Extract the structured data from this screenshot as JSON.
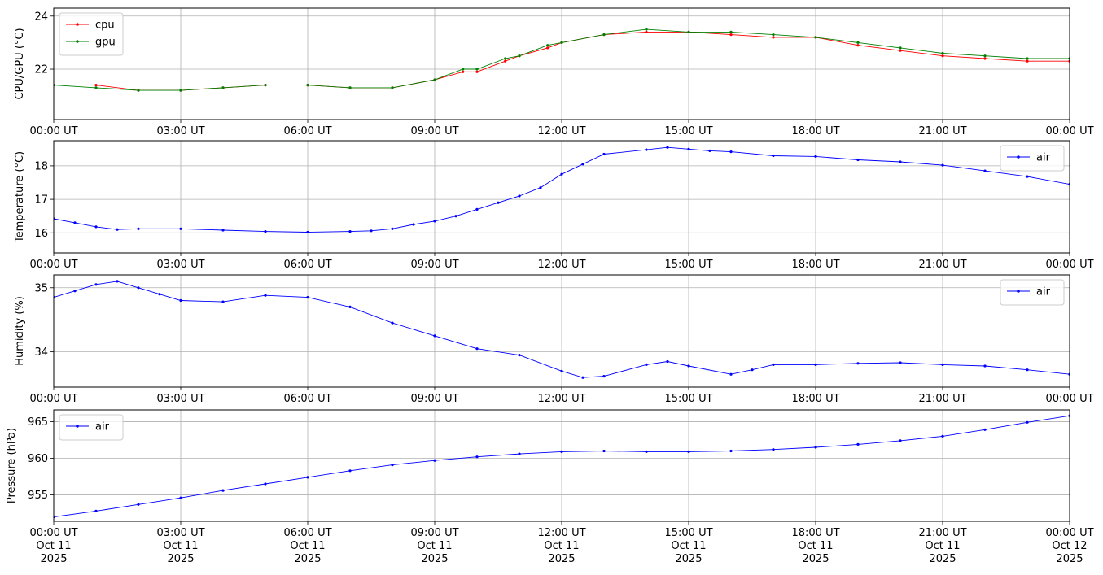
{
  "chart_data": [
    {
      "type": "line",
      "ylabel": "CPU/GPU (°C)",
      "xlim": [
        "2025-10-11T00:00",
        "2025-10-12T00:00"
      ],
      "ylim": [
        20.1,
        24.3
      ],
      "yticks": [
        22,
        24
      ],
      "x_tick_labels": [
        "00:00 UT",
        "03:00 UT",
        "06:00 UT",
        "09:00 UT",
        "12:00 UT",
        "15:00 UT",
        "18:00 UT",
        "21:00 UT",
        "00:00 UT"
      ],
      "grid": true,
      "legend": "top-left",
      "series": [
        {
          "name": "cpu",
          "color": "#ff0000",
          "points": [
            [
              "2025-10-11T00:00",
              21.4
            ],
            [
              "2025-10-11T01:00",
              21.4
            ],
            [
              "2025-10-11T02:00",
              21.2
            ],
            [
              "2025-10-11T03:00",
              21.2
            ],
            [
              "2025-10-11T04:00",
              21.3
            ],
            [
              "2025-10-11T05:00",
              21.4
            ],
            [
              "2025-10-11T06:00",
              21.4
            ],
            [
              "2025-10-11T07:00",
              21.3
            ],
            [
              "2025-10-11T08:00",
              21.3
            ],
            [
              "2025-10-11T09:00",
              21.6
            ],
            [
              "2025-10-11T09:40",
              21.9
            ],
            [
              "2025-10-11T10:00",
              21.9
            ],
            [
              "2025-10-11T10:40",
              22.3
            ],
            [
              "2025-10-11T11:00",
              22.5
            ],
            [
              "2025-10-11T11:40",
              22.8
            ],
            [
              "2025-10-11T12:00",
              23.0
            ],
            [
              "2025-10-11T13:00",
              23.3
            ],
            [
              "2025-10-11T14:00",
              23.4
            ],
            [
              "2025-10-11T15:00",
              23.4
            ],
            [
              "2025-10-11T16:00",
              23.3
            ],
            [
              "2025-10-11T17:00",
              23.2
            ],
            [
              "2025-10-11T18:00",
              23.2
            ],
            [
              "2025-10-11T19:00",
              22.9
            ],
            [
              "2025-10-11T20:00",
              22.7
            ],
            [
              "2025-10-11T21:00",
              22.5
            ],
            [
              "2025-10-11T22:00",
              22.4
            ],
            [
              "2025-10-11T23:00",
              22.3
            ],
            [
              "2025-10-12T00:00",
              22.3
            ]
          ]
        },
        {
          "name": "gpu",
          "color": "#008000",
          "points": [
            [
              "2025-10-11T00:00",
              21.4
            ],
            [
              "2025-10-11T01:00",
              21.3
            ],
            [
              "2025-10-11T02:00",
              21.2
            ],
            [
              "2025-10-11T03:00",
              21.2
            ],
            [
              "2025-10-11T04:00",
              21.3
            ],
            [
              "2025-10-11T05:00",
              21.4
            ],
            [
              "2025-10-11T06:00",
              21.4
            ],
            [
              "2025-10-11T07:00",
              21.3
            ],
            [
              "2025-10-11T08:00",
              21.3
            ],
            [
              "2025-10-11T09:00",
              21.6
            ],
            [
              "2025-10-11T09:40",
              22.0
            ],
            [
              "2025-10-11T10:00",
              22.0
            ],
            [
              "2025-10-11T10:40",
              22.4
            ],
            [
              "2025-10-11T11:00",
              22.5
            ],
            [
              "2025-10-11T11:40",
              22.9
            ],
            [
              "2025-10-11T12:00",
              23.0
            ],
            [
              "2025-10-11T13:00",
              23.3
            ],
            [
              "2025-10-11T14:00",
              23.5
            ],
            [
              "2025-10-11T15:00",
              23.4
            ],
            [
              "2025-10-11T16:00",
              23.4
            ],
            [
              "2025-10-11T17:00",
              23.3
            ],
            [
              "2025-10-11T18:00",
              23.2
            ],
            [
              "2025-10-11T19:00",
              23.0
            ],
            [
              "2025-10-11T20:00",
              22.8
            ],
            [
              "2025-10-11T21:00",
              22.6
            ],
            [
              "2025-10-11T22:00",
              22.5
            ],
            [
              "2025-10-11T23:00",
              22.4
            ],
            [
              "2025-10-12T00:00",
              22.4
            ]
          ]
        }
      ]
    },
    {
      "type": "line",
      "ylabel": "Temperature (°C)",
      "xlim": [
        "2025-10-11T00:00",
        "2025-10-12T00:00"
      ],
      "ylim": [
        15.4,
        18.75
      ],
      "yticks": [
        16,
        17,
        18
      ],
      "x_tick_labels": [
        "00:00 UT",
        "03:00 UT",
        "06:00 UT",
        "09:00 UT",
        "12:00 UT",
        "15:00 UT",
        "18:00 UT",
        "21:00 UT",
        "00:00 UT"
      ],
      "grid": true,
      "legend": "top-right",
      "series": [
        {
          "name": "air",
          "color": "#0000ff",
          "points": [
            [
              "2025-10-11T00:00",
              16.42
            ],
            [
              "2025-10-11T00:30",
              16.3
            ],
            [
              "2025-10-11T01:00",
              16.18
            ],
            [
              "2025-10-11T01:30",
              16.1
            ],
            [
              "2025-10-11T02:00",
              16.12
            ],
            [
              "2025-10-11T03:00",
              16.12
            ],
            [
              "2025-10-11T04:00",
              16.08
            ],
            [
              "2025-10-11T05:00",
              16.04
            ],
            [
              "2025-10-11T06:00",
              16.02
            ],
            [
              "2025-10-11T07:00",
              16.04
            ],
            [
              "2025-10-11T07:30",
              16.06
            ],
            [
              "2025-10-11T08:00",
              16.12
            ],
            [
              "2025-10-11T08:30",
              16.25
            ],
            [
              "2025-10-11T09:00",
              16.35
            ],
            [
              "2025-10-11T09:30",
              16.5
            ],
            [
              "2025-10-11T10:00",
              16.7
            ],
            [
              "2025-10-11T10:30",
              16.9
            ],
            [
              "2025-10-11T11:00",
              17.1
            ],
            [
              "2025-10-11T11:30",
              17.35
            ],
            [
              "2025-10-11T12:00",
              17.75
            ],
            [
              "2025-10-11T12:30",
              18.05
            ],
            [
              "2025-10-11T13:00",
              18.35
            ],
            [
              "2025-10-11T14:00",
              18.48
            ],
            [
              "2025-10-11T14:30",
              18.55
            ],
            [
              "2025-10-11T15:00",
              18.5
            ],
            [
              "2025-10-11T15:30",
              18.45
            ],
            [
              "2025-10-11T16:00",
              18.42
            ],
            [
              "2025-10-11T17:00",
              18.3
            ],
            [
              "2025-10-11T18:00",
              18.28
            ],
            [
              "2025-10-11T19:00",
              18.18
            ],
            [
              "2025-10-11T20:00",
              18.12
            ],
            [
              "2025-10-11T21:00",
              18.02
            ],
            [
              "2025-10-11T22:00",
              17.85
            ],
            [
              "2025-10-11T23:00",
              17.68
            ],
            [
              "2025-10-12T00:00",
              17.45
            ]
          ]
        }
      ]
    },
    {
      "type": "line",
      "ylabel": "Humidity (%)",
      "xlim": [
        "2025-10-11T00:00",
        "2025-10-12T00:00"
      ],
      "ylim": [
        33.45,
        35.2
      ],
      "yticks": [
        34,
        35
      ],
      "x_tick_labels": [
        "00:00 UT",
        "03:00 UT",
        "06:00 UT",
        "09:00 UT",
        "12:00 UT",
        "15:00 UT",
        "18:00 UT",
        "21:00 UT",
        "00:00 UT"
      ],
      "grid": true,
      "legend": "top-right",
      "series": [
        {
          "name": "air",
          "color": "#0000ff",
          "points": [
            [
              "2025-10-11T00:00",
              34.85
            ],
            [
              "2025-10-11T00:30",
              34.95
            ],
            [
              "2025-10-11T01:00",
              35.05
            ],
            [
              "2025-10-11T01:30",
              35.1
            ],
            [
              "2025-10-11T02:00",
              35.0
            ],
            [
              "2025-10-11T02:30",
              34.9
            ],
            [
              "2025-10-11T03:00",
              34.8
            ],
            [
              "2025-10-11T04:00",
              34.78
            ],
            [
              "2025-10-11T05:00",
              34.88
            ],
            [
              "2025-10-11T06:00",
              34.85
            ],
            [
              "2025-10-11T07:00",
              34.7
            ],
            [
              "2025-10-11T08:00",
              34.45
            ],
            [
              "2025-10-11T09:00",
              34.25
            ],
            [
              "2025-10-11T10:00",
              34.05
            ],
            [
              "2025-10-11T11:00",
              33.95
            ],
            [
              "2025-10-11T12:00",
              33.7
            ],
            [
              "2025-10-11T12:30",
              33.6
            ],
            [
              "2025-10-11T13:00",
              33.62
            ],
            [
              "2025-10-11T14:00",
              33.8
            ],
            [
              "2025-10-11T14:30",
              33.85
            ],
            [
              "2025-10-11T15:00",
              33.78
            ],
            [
              "2025-10-11T16:00",
              33.65
            ],
            [
              "2025-10-11T16:30",
              33.72
            ],
            [
              "2025-10-11T17:00",
              33.8
            ],
            [
              "2025-10-11T18:00",
              33.8
            ],
            [
              "2025-10-11T19:00",
              33.82
            ],
            [
              "2025-10-11T20:00",
              33.83
            ],
            [
              "2025-10-11T21:00",
              33.8
            ],
            [
              "2025-10-11T22:00",
              33.78
            ],
            [
              "2025-10-11T23:00",
              33.72
            ],
            [
              "2025-10-12T00:00",
              33.65
            ]
          ]
        }
      ]
    },
    {
      "type": "line",
      "ylabel": "Pressure (hPa)",
      "xlim": [
        "2025-10-11T00:00",
        "2025-10-12T00:00"
      ],
      "ylim": [
        951.4,
        966.6
      ],
      "yticks": [
        955,
        960,
        965
      ],
      "x_tick_labels": [
        "00:00 UT\nOct 11\n2025",
        "03:00 UT\nOct 11\n2025",
        "06:00 UT\nOct 11\n2025",
        "09:00 UT\nOct 11\n2025",
        "12:00 UT\nOct 11\n2025",
        "15:00 UT\nOct 11\n2025",
        "18:00 UT\nOct 11\n2025",
        "21:00 UT\nOct 11\n2025",
        "00:00 UT\nOct 12\n2025"
      ],
      "grid": true,
      "legend": "top-left",
      "series": [
        {
          "name": "air",
          "color": "#0000ff",
          "points": [
            [
              "2025-10-11T00:00",
              952.0
            ],
            [
              "2025-10-11T01:00",
              952.8
            ],
            [
              "2025-10-11T02:00",
              953.7
            ],
            [
              "2025-10-11T03:00",
              954.6
            ],
            [
              "2025-10-11T04:00",
              955.6
            ],
            [
              "2025-10-11T05:00",
              956.5
            ],
            [
              "2025-10-11T06:00",
              957.4
            ],
            [
              "2025-10-11T07:00",
              958.3
            ],
            [
              "2025-10-11T08:00",
              959.1
            ],
            [
              "2025-10-11T09:00",
              959.7
            ],
            [
              "2025-10-11T10:00",
              960.2
            ],
            [
              "2025-10-11T11:00",
              960.6
            ],
            [
              "2025-10-11T12:00",
              960.9
            ],
            [
              "2025-10-11T13:00",
              961.0
            ],
            [
              "2025-10-11T14:00",
              960.9
            ],
            [
              "2025-10-11T15:00",
              960.9
            ],
            [
              "2025-10-11T16:00",
              961.0
            ],
            [
              "2025-10-11T17:00",
              961.2
            ],
            [
              "2025-10-11T18:00",
              961.5
            ],
            [
              "2025-10-11T19:00",
              961.9
            ],
            [
              "2025-10-11T20:00",
              962.4
            ],
            [
              "2025-10-11T21:00",
              963.0
            ],
            [
              "2025-10-11T22:00",
              963.9
            ],
            [
              "2025-10-11T23:00",
              964.9
            ],
            [
              "2025-10-12T00:00",
              965.8
            ]
          ]
        }
      ]
    }
  ]
}
